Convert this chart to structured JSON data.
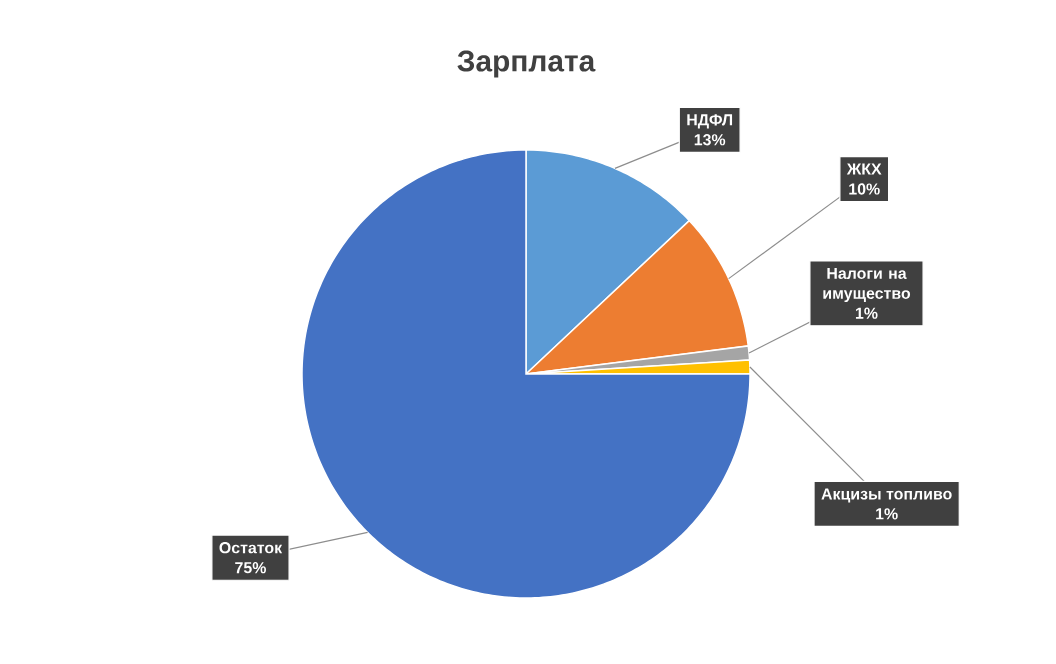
{
  "chart_data": {
    "type": "pie",
    "title": "Зарплата",
    "categories": [
      "НДФЛ",
      "ЖКХ",
      "Налоги на имущество",
      "Акцизы топливо",
      "Остаток"
    ],
    "values": [
      13,
      10,
      1,
      1,
      75
    ],
    "colors": [
      "#5b9bd5",
      "#ed7d31",
      "#a5a5a5",
      "#ffc000",
      "#4472c4"
    ],
    "value_labels": [
      "13%",
      "10%",
      "1%",
      "1%",
      "75%"
    ]
  }
}
